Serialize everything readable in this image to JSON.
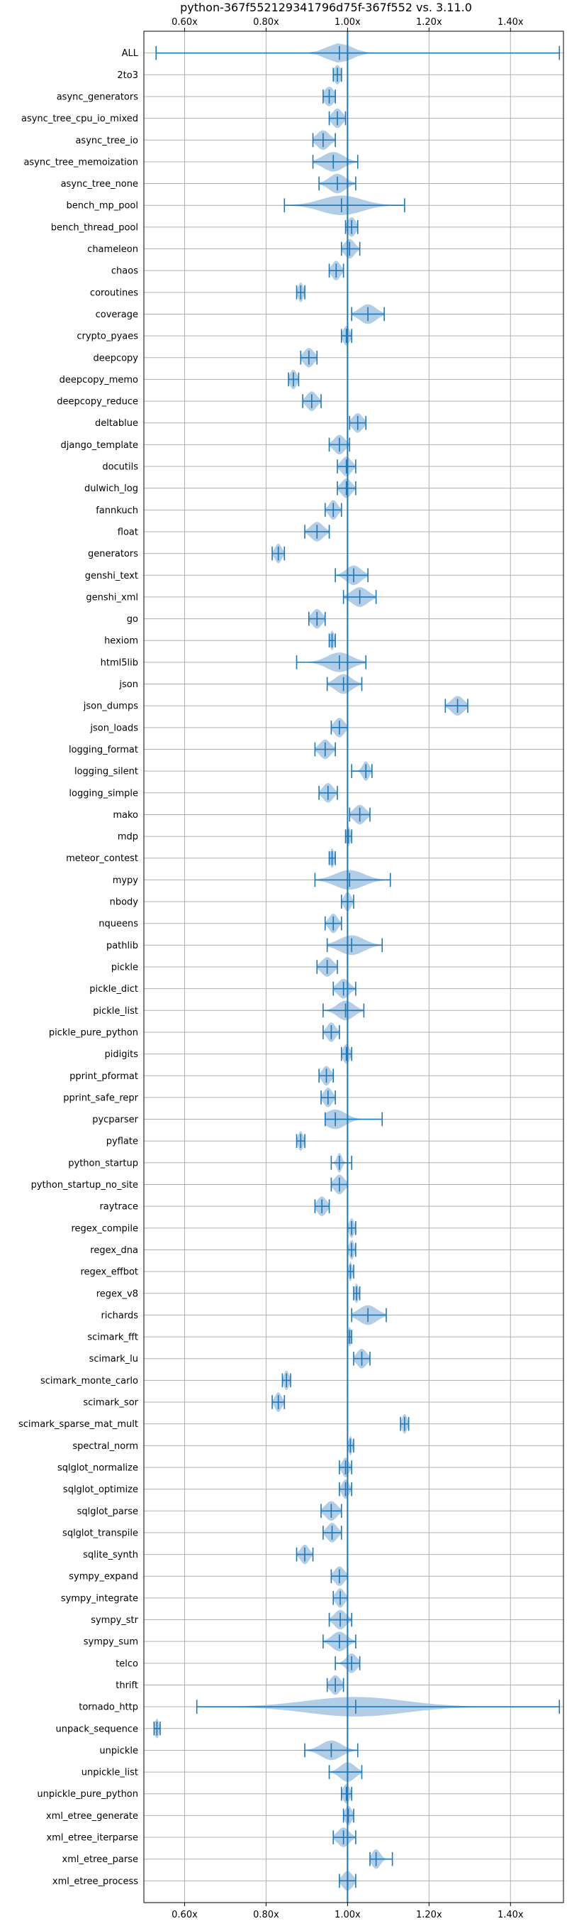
{
  "chart_data": {
    "type": "violin",
    "orientation": "horizontal",
    "title": "python-367f552129341796d75f-367f552 vs. 3.11.0",
    "xlabel": "",
    "ylabel": "",
    "xlim": [
      0.5,
      1.53
    ],
    "xticks": [
      0.6,
      0.8,
      1.0,
      1.2,
      1.4
    ],
    "xtick_labels": [
      "0.60x",
      "0.80x",
      "1.00x",
      "1.20x",
      "1.40x"
    ],
    "xtick_positions": [
      "top",
      "bottom"
    ],
    "grid": true,
    "reference_line": 1.0,
    "colors": {
      "violin": "#aac8e3",
      "line": "#1f77b4",
      "grid": "#b0b0b0"
    },
    "series": [
      {
        "name": "ALL",
        "min": 0.53,
        "max": 1.52,
        "mean": 0.98,
        "spread": 0.03
      },
      {
        "name": "2to3",
        "min": 0.965,
        "max": 0.985,
        "mean": 0.975,
        "spread": 0.008
      },
      {
        "name": "async_generators",
        "min": 0.94,
        "max": 0.97,
        "mean": 0.955,
        "spread": 0.012
      },
      {
        "name": "async_tree_cpu_io_mixed",
        "min": 0.955,
        "max": 0.995,
        "mean": 0.975,
        "spread": 0.012
      },
      {
        "name": "async_tree_io",
        "min": 0.915,
        "max": 0.97,
        "mean": 0.94,
        "spread": 0.015
      },
      {
        "name": "async_tree_memoization",
        "min": 0.915,
        "max": 1.025,
        "mean": 0.965,
        "spread": 0.025
      },
      {
        "name": "async_tree_none",
        "min": 0.93,
        "max": 1.02,
        "mean": 0.975,
        "spread": 0.02
      },
      {
        "name": "bench_mp_pool",
        "min": 0.845,
        "max": 1.14,
        "mean": 0.985,
        "spread": 0.05
      },
      {
        "name": "bench_thread_pool",
        "min": 0.995,
        "max": 1.025,
        "mean": 1.01,
        "spread": 0.01
      },
      {
        "name": "chameleon",
        "min": 0.985,
        "max": 1.03,
        "mean": 1.005,
        "spread": 0.012
      },
      {
        "name": "chaos",
        "min": 0.955,
        "max": 0.99,
        "mean": 0.972,
        "spread": 0.01
      },
      {
        "name": "coroutines",
        "min": 0.875,
        "max": 0.895,
        "mean": 0.885,
        "spread": 0.006
      },
      {
        "name": "coverage",
        "min": 1.01,
        "max": 1.09,
        "mean": 1.05,
        "spread": 0.02
      },
      {
        "name": "crypto_pyaes",
        "min": 0.985,
        "max": 1.01,
        "mean": 0.997,
        "spread": 0.008
      },
      {
        "name": "deepcopy",
        "min": 0.885,
        "max": 0.925,
        "mean": 0.905,
        "spread": 0.012
      },
      {
        "name": "deepcopy_memo",
        "min": 0.855,
        "max": 0.88,
        "mean": 0.867,
        "spread": 0.008
      },
      {
        "name": "deepcopy_reduce",
        "min": 0.89,
        "max": 0.935,
        "mean": 0.912,
        "spread": 0.012
      },
      {
        "name": "deltablue",
        "min": 1.005,
        "max": 1.045,
        "mean": 1.025,
        "spread": 0.012
      },
      {
        "name": "django_template",
        "min": 0.955,
        "max": 1.005,
        "mean": 0.98,
        "spread": 0.013
      },
      {
        "name": "docutils",
        "min": 0.975,
        "max": 1.02,
        "mean": 0.997,
        "spread": 0.012
      },
      {
        "name": "dulwich_log",
        "min": 0.975,
        "max": 1.02,
        "mean": 0.997,
        "spread": 0.012
      },
      {
        "name": "fannkuch",
        "min": 0.945,
        "max": 0.985,
        "mean": 0.965,
        "spread": 0.01
      },
      {
        "name": "float",
        "min": 0.895,
        "max": 0.955,
        "mean": 0.925,
        "spread": 0.015
      },
      {
        "name": "generators",
        "min": 0.815,
        "max": 0.845,
        "mean": 0.83,
        "spread": 0.008
      },
      {
        "name": "genshi_text",
        "min": 0.97,
        "max": 1.05,
        "mean": 1.015,
        "spread": 0.018
      },
      {
        "name": "genshi_xml",
        "min": 0.99,
        "max": 1.07,
        "mean": 1.03,
        "spread": 0.02
      },
      {
        "name": "go",
        "min": 0.905,
        "max": 0.945,
        "mean": 0.925,
        "spread": 0.012
      },
      {
        "name": "hexiom",
        "min": 0.955,
        "max": 0.97,
        "mean": 0.962,
        "spread": 0.005
      },
      {
        "name": "html5lib",
        "min": 0.875,
        "max": 1.045,
        "mean": 0.98,
        "spread": 0.03
      },
      {
        "name": "json",
        "min": 0.95,
        "max": 1.035,
        "mean": 0.99,
        "spread": 0.02
      },
      {
        "name": "json_dumps",
        "min": 1.24,
        "max": 1.295,
        "mean": 1.27,
        "spread": 0.015
      },
      {
        "name": "json_loads",
        "min": 0.96,
        "max": 1.0,
        "mean": 0.98,
        "spread": 0.012
      },
      {
        "name": "logging_format",
        "min": 0.92,
        "max": 0.97,
        "mean": 0.945,
        "spread": 0.013
      },
      {
        "name": "logging_silent",
        "min": 1.01,
        "max": 1.06,
        "mean": 1.045,
        "spread": 0.008
      },
      {
        "name": "logging_simple",
        "min": 0.93,
        "max": 0.975,
        "mean": 0.952,
        "spread": 0.012
      },
      {
        "name": "mako",
        "min": 1.005,
        "max": 1.055,
        "mean": 1.03,
        "spread": 0.014
      },
      {
        "name": "mdp",
        "min": 0.995,
        "max": 1.01,
        "mean": 1.002,
        "spread": 0.005
      },
      {
        "name": "meteor_contest",
        "min": 0.955,
        "max": 0.97,
        "mean": 0.962,
        "spread": 0.005
      },
      {
        "name": "mypy",
        "min": 0.92,
        "max": 1.105,
        "mean": 1.005,
        "spread": 0.035
      },
      {
        "name": "nbody",
        "min": 0.985,
        "max": 1.015,
        "mean": 1.0,
        "spread": 0.008
      },
      {
        "name": "nqueens",
        "min": 0.945,
        "max": 0.985,
        "mean": 0.965,
        "spread": 0.01
      },
      {
        "name": "pathlib",
        "min": 0.95,
        "max": 1.085,
        "mean": 1.01,
        "spread": 0.03
      },
      {
        "name": "pickle",
        "min": 0.925,
        "max": 0.975,
        "mean": 0.95,
        "spread": 0.014
      },
      {
        "name": "pickle_dict",
        "min": 0.965,
        "max": 1.02,
        "mean": 0.99,
        "spread": 0.014
      },
      {
        "name": "pickle_list",
        "min": 0.94,
        "max": 1.04,
        "mean": 0.995,
        "spread": 0.02
      },
      {
        "name": "pickle_pure_python",
        "min": 0.94,
        "max": 0.98,
        "mean": 0.96,
        "spread": 0.01
      },
      {
        "name": "pidigits",
        "min": 0.985,
        "max": 1.01,
        "mean": 0.997,
        "spread": 0.008
      },
      {
        "name": "pprint_pformat",
        "min": 0.93,
        "max": 0.965,
        "mean": 0.948,
        "spread": 0.01
      },
      {
        "name": "pprint_safe_repr",
        "min": 0.935,
        "max": 0.97,
        "mean": 0.952,
        "spread": 0.01
      },
      {
        "name": "pycparser",
        "min": 0.945,
        "max": 1.085,
        "mean": 0.97,
        "spread": 0.025
      },
      {
        "name": "pyflate",
        "min": 0.875,
        "max": 0.895,
        "mean": 0.885,
        "spread": 0.006
      },
      {
        "name": "python_startup",
        "min": 0.96,
        "max": 1.01,
        "mean": 0.98,
        "spread": 0.006
      },
      {
        "name": "python_startup_no_site",
        "min": 0.96,
        "max": 1.0,
        "mean": 0.98,
        "spread": 0.012
      },
      {
        "name": "raytrace",
        "min": 0.92,
        "max": 0.955,
        "mean": 0.937,
        "spread": 0.011
      },
      {
        "name": "regex_compile",
        "min": 1.0,
        "max": 1.02,
        "mean": 1.01,
        "spread": 0.006
      },
      {
        "name": "regex_dna",
        "min": 1.0,
        "max": 1.02,
        "mean": 1.01,
        "spread": 0.006
      },
      {
        "name": "regex_effbot",
        "min": 1.0,
        "max": 1.015,
        "mean": 1.007,
        "spread": 0.004
      },
      {
        "name": "regex_v8",
        "min": 1.015,
        "max": 1.03,
        "mean": 1.022,
        "spread": 0.005
      },
      {
        "name": "richards",
        "min": 1.01,
        "max": 1.095,
        "mean": 1.05,
        "spread": 0.022
      },
      {
        "name": "scimark_fft",
        "min": 1.0,
        "max": 1.01,
        "mean": 1.005,
        "spread": 0.004
      },
      {
        "name": "scimark_lu",
        "min": 1.015,
        "max": 1.055,
        "mean": 1.035,
        "spread": 0.012
      },
      {
        "name": "scimark_monte_carlo",
        "min": 0.84,
        "max": 0.86,
        "mean": 0.85,
        "spread": 0.006
      },
      {
        "name": "scimark_sor",
        "min": 0.815,
        "max": 0.845,
        "mean": 0.83,
        "spread": 0.008
      },
      {
        "name": "scimark_sparse_mat_mult",
        "min": 1.13,
        "max": 1.15,
        "mean": 1.14,
        "spread": 0.006
      },
      {
        "name": "spectral_norm",
        "min": 1.0,
        "max": 1.015,
        "mean": 1.007,
        "spread": 0.004
      },
      {
        "name": "sqlglot_normalize",
        "min": 0.98,
        "max": 1.01,
        "mean": 0.995,
        "spread": 0.008
      },
      {
        "name": "sqlglot_optimize",
        "min": 0.98,
        "max": 1.01,
        "mean": 0.995,
        "spread": 0.008
      },
      {
        "name": "sqlglot_parse",
        "min": 0.935,
        "max": 0.985,
        "mean": 0.96,
        "spread": 0.014
      },
      {
        "name": "sqlglot_transpile",
        "min": 0.94,
        "max": 0.985,
        "mean": 0.962,
        "spread": 0.012
      },
      {
        "name": "sqlite_synth",
        "min": 0.875,
        "max": 0.915,
        "mean": 0.895,
        "spread": 0.01
      },
      {
        "name": "sympy_expand",
        "min": 0.96,
        "max": 1.0,
        "mean": 0.98,
        "spread": 0.012
      },
      {
        "name": "sympy_integrate",
        "min": 0.965,
        "max": 1.0,
        "mean": 0.982,
        "spread": 0.01
      },
      {
        "name": "sympy_str",
        "min": 0.955,
        "max": 1.01,
        "mean": 0.982,
        "spread": 0.014
      },
      {
        "name": "sympy_sum",
        "min": 0.94,
        "max": 1.02,
        "mean": 0.98,
        "spread": 0.018
      },
      {
        "name": "telco",
        "min": 0.97,
        "max": 1.03,
        "mean": 1.01,
        "spread": 0.013
      },
      {
        "name": "thrift",
        "min": 0.95,
        "max": 0.99,
        "mean": 0.97,
        "spread": 0.012
      },
      {
        "name": "tornado_http",
        "min": 0.63,
        "max": 1.52,
        "mean": 1.02,
        "spread": 0.12
      },
      {
        "name": "unpack_sequence",
        "min": 0.525,
        "max": 0.54,
        "mean": 0.532,
        "spread": 0.005
      },
      {
        "name": "unpickle",
        "min": 0.895,
        "max": 1.025,
        "mean": 0.96,
        "spread": 0.025
      },
      {
        "name": "unpickle_list",
        "min": 0.955,
        "max": 1.035,
        "mean": 1.0,
        "spread": 0.018
      },
      {
        "name": "unpickle_pure_python",
        "min": 0.985,
        "max": 1.01,
        "mean": 0.997,
        "spread": 0.008
      },
      {
        "name": "xml_etree_generate",
        "min": 0.99,
        "max": 1.015,
        "mean": 1.002,
        "spread": 0.008
      },
      {
        "name": "xml_etree_iterparse",
        "min": 0.965,
        "max": 1.02,
        "mean": 0.99,
        "spread": 0.014
      },
      {
        "name": "xml_etree_parse",
        "min": 1.055,
        "max": 1.11,
        "mean": 1.07,
        "spread": 0.01
      },
      {
        "name": "xml_etree_process",
        "min": 0.98,
        "max": 1.02,
        "mean": 1.0,
        "spread": 0.012
      }
    ]
  }
}
